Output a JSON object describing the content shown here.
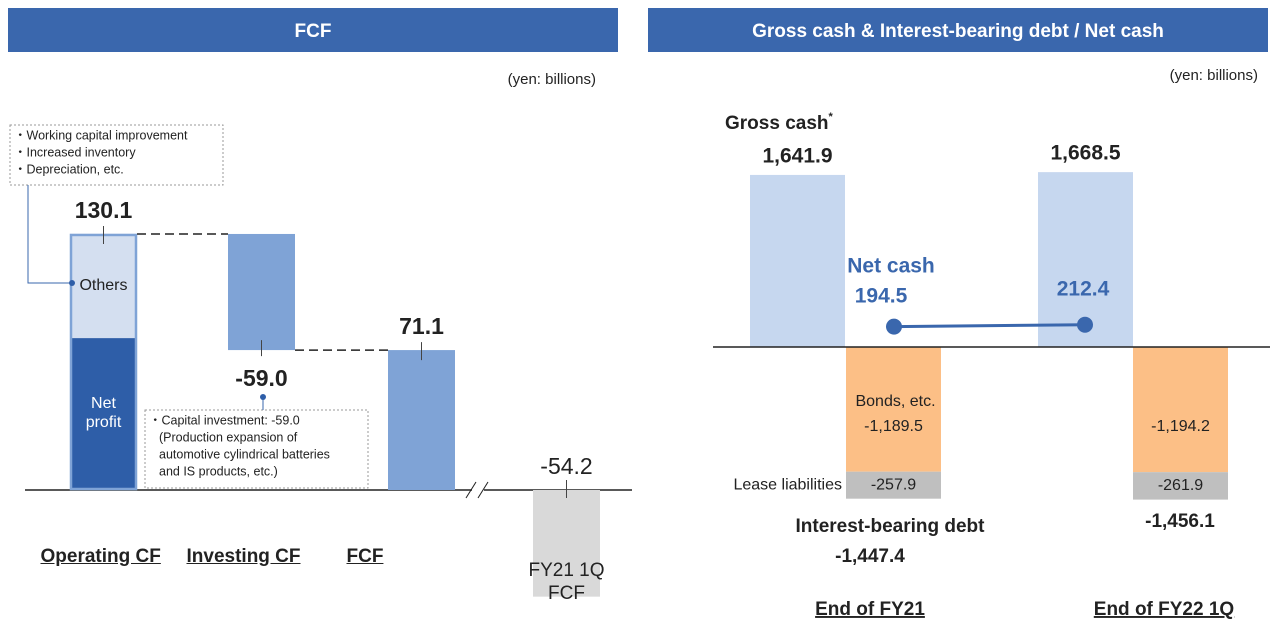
{
  "chart_data": [
    {
      "type": "waterfall",
      "title": "FCF",
      "unit_note": "(yen: billions)",
      "categories": [
        "Operating CF",
        "Investing CF",
        "FCF",
        "FY21 1Q FCF"
      ],
      "values": [
        130.1,
        -59.0,
        71.1,
        -54.2
      ],
      "value_labels": [
        "130.1",
        "-59.0",
        "71.1",
        "-54.2"
      ],
      "measure": [
        "relative",
        "relative",
        "total",
        "absolute"
      ],
      "colors": [
        "#d4dff0",
        "#7fa3d6",
        "#7fa3d6",
        "#d9d9d9"
      ],
      "segments": [
        {
          "name": "Net profit",
          "value": 77.2,
          "color": "#2e5ea8"
        },
        {
          "name": "Others",
          "value": 52.9,
          "color": "#d4dff0"
        }
      ],
      "annotations": [
        {
          "lines": [
            "・Working capital improvement",
            "・Increased inventory",
            "・Depreciation, etc."
          ]
        },
        {
          "lines": [
            "・Capital investment: -59.0",
            "(Production expansion of",
            "automotive cylindrical batteries",
            "and IS products, etc.)"
          ]
        }
      ]
    },
    {
      "type": "bar_line",
      "title": "Gross cash & Interest-bearing debt / Net cash",
      "unit_note": "(yen: billions)",
      "categories": [
        "End of FY21",
        "End of FY22 1Q"
      ],
      "series": [
        {
          "name": "Gross cash",
          "color": "#c6d7ef",
          "values": [
            1641.9,
            1668.5
          ],
          "value_labels": [
            "1,641.9",
            "1,668.5"
          ]
        },
        {
          "name": "Bonds, etc.",
          "color": "#fcbf86",
          "values": [
            -1189.5,
            -1194.2
          ],
          "value_labels": [
            "-1,189.5",
            "-1,194.2"
          ]
        },
        {
          "name": "Lease liabilities",
          "color": "#bfbfbf",
          "values": [
            -257.9,
            -261.9
          ],
          "value_labels": [
            "-257.9",
            "-261.9"
          ]
        },
        {
          "name": "Net cash",
          "type": "line",
          "color": "#3a67ad",
          "values": [
            194.5,
            212.4
          ]
        }
      ],
      "gross_cash_footnote": "*",
      "totals": {
        "name": "Interest-bearing debt",
        "values": [
          -1447.4,
          -1456.1
        ],
        "value_labels": [
          "-1,447.4",
          "-1,456.1"
        ]
      }
    }
  ]
}
